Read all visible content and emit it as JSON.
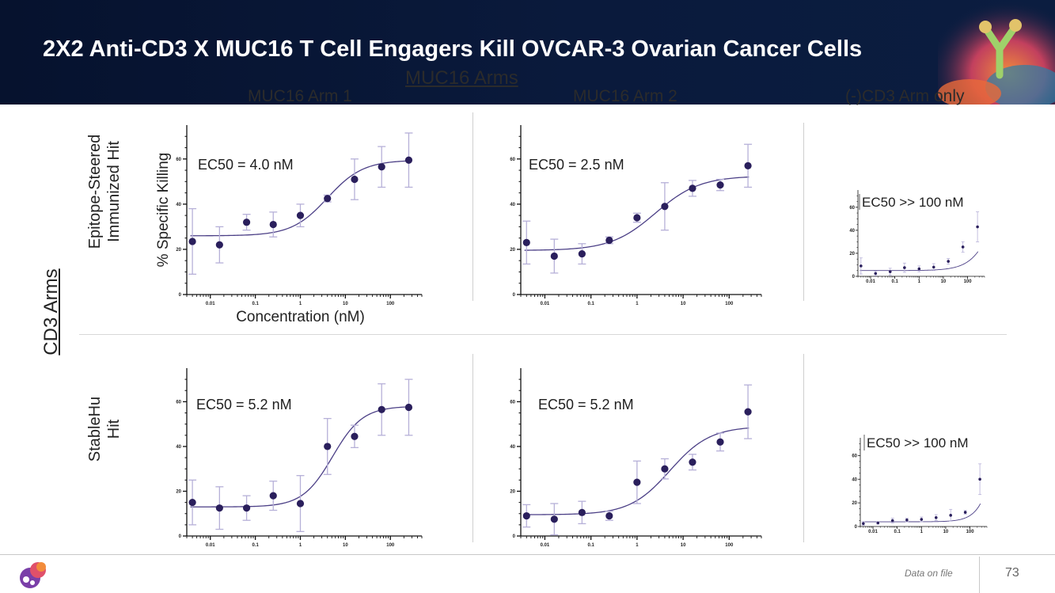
{
  "header": {
    "title": "2X2 Anti-CD3 X MUC16 T Cell Engagers Kill OVCAR-3 Ovarian Cancer Cells"
  },
  "columns": {
    "group_label": "MUC16 Arms",
    "col1": "MUC16 Arm 1",
    "col2": "MUC16 Arm 2",
    "col3": "(-)CD3 Arm only"
  },
  "rows": {
    "group_label": "CD3 Arms",
    "row1_line1": "Epitope-Steered",
    "row1_line2": "Immunized  Hit",
    "row2_line1": "StableHu",
    "row2_line2": "Hit"
  },
  "footer": {
    "note": "Data on file",
    "page_number": "73"
  },
  "colors": {
    "header_bg": "#0a1a3c",
    "point": "#2a1f5c",
    "curve": "#4b3f86",
    "error_bar": "#b6b0d8"
  },
  "chart_data": [
    {
      "type": "scatter",
      "id": "r1c1",
      "x_scale": "log",
      "xlim": [
        0.003,
        500
      ],
      "ylim": [
        0,
        75
      ],
      "x_ticks": [
        0.01,
        0.1,
        1,
        10,
        100
      ],
      "x_tick_labels": [
        "0.01",
        "0.1",
        "1",
        "10",
        "100"
      ],
      "y_ticks": [
        0,
        20,
        40,
        60
      ],
      "y_tick_labels": [
        "0",
        "20",
        "40",
        "60"
      ],
      "xlabel": "Concentration (nM)",
      "ylabel": "% Specific Killing",
      "annotation": "EC50 = 4.0 nM",
      "x": [
        0.004,
        0.016,
        0.064,
        0.25,
        1,
        4,
        16,
        64,
        256
      ],
      "y": [
        23.5,
        22,
        32,
        31,
        35,
        42.5,
        51,
        56.5,
        59.5
      ],
      "err": [
        14.5,
        8,
        3.5,
        5.5,
        5,
        1.5,
        9,
        9,
        12
      ],
      "fit": {
        "bottom": 26,
        "top": 59.5,
        "ec50": 4.0,
        "hill": 1.1
      }
    },
    {
      "type": "scatter",
      "id": "r1c2",
      "x_scale": "log",
      "xlim": [
        0.003,
        500
      ],
      "ylim": [
        0,
        75
      ],
      "x_ticks": [
        0.01,
        0.1,
        1,
        10,
        100
      ],
      "x_tick_labels": [
        "0.01",
        "0.1",
        "1",
        "10",
        "100"
      ],
      "y_ticks": [
        0,
        20,
        40,
        60
      ],
      "y_tick_labels": [
        "0",
        "20",
        "40",
        "60"
      ],
      "annotation": "EC50 = 2.5 nM",
      "x": [
        0.004,
        0.016,
        0.064,
        0.25,
        1,
        4,
        16,
        64,
        256
      ],
      "y": [
        23,
        17,
        18,
        24,
        34,
        39,
        47,
        48.5,
        57
      ],
      "err": [
        9.5,
        7.5,
        4.5,
        1.5,
        2,
        10.5,
        3.5,
        2.5,
        9.5
      ],
      "fit": {
        "bottom": 19.5,
        "top": 52.5,
        "ec50": 2.5,
        "hill": 0.9
      }
    },
    {
      "type": "scatter",
      "id": "r1c3",
      "x_scale": "log",
      "xlim": [
        0.003,
        500
      ],
      "ylim": [
        0,
        75
      ],
      "x_ticks": [
        0.01,
        0.1,
        1,
        10,
        100
      ],
      "x_tick_labels": [
        "0.01",
        "0.1",
        "1",
        "10",
        "100"
      ],
      "y_ticks": [
        0,
        20,
        40,
        60
      ],
      "y_tick_labels": [
        "0",
        "20",
        "40",
        "60"
      ],
      "annotation": "EC50 >> 100 nM",
      "x": [
        0.004,
        0.016,
        0.064,
        0.25,
        1,
        4,
        16,
        64,
        256
      ],
      "y": [
        9,
        2.5,
        4,
        7.5,
        6.5,
        8,
        13,
        25.5,
        43
      ],
      "err": [
        7,
        2,
        3,
        4,
        2.5,
        3,
        2.5,
        4.5,
        13
      ],
      "fit": {
        "bottom": 5,
        "top": 150,
        "ec50": 3000,
        "hill": 0.85
      }
    },
    {
      "type": "scatter",
      "id": "r2c1",
      "x_scale": "log",
      "xlim": [
        0.003,
        500
      ],
      "ylim": [
        0,
        75
      ],
      "x_ticks": [
        0.01,
        0.1,
        1,
        10,
        100
      ],
      "x_tick_labels": [
        "0.01",
        "0.1",
        "1",
        "10",
        "100"
      ],
      "y_ticks": [
        0,
        20,
        40,
        60
      ],
      "y_tick_labels": [
        "0",
        "20",
        "40",
        "60"
      ],
      "annotation": "EC50 = 5.2 nM",
      "x": [
        0.004,
        0.016,
        0.064,
        0.25,
        1,
        4,
        16,
        64,
        256
      ],
      "y": [
        15,
        12.5,
        12.5,
        18,
        14.5,
        40,
        44.5,
        56.5,
        57.5
      ],
      "err": [
        10,
        9.5,
        5.5,
        6.5,
        12.5,
        12.5,
        5,
        11.5,
        12.5
      ],
      "fit": {
        "bottom": 13,
        "top": 58,
        "ec50": 5.2,
        "hill": 1.3
      }
    },
    {
      "type": "scatter",
      "id": "r2c2",
      "x_scale": "log",
      "xlim": [
        0.003,
        500
      ],
      "ylim": [
        0,
        75
      ],
      "x_ticks": [
        0.01,
        0.1,
        1,
        10,
        100
      ],
      "x_tick_labels": [
        "0.01",
        "0.1",
        "1",
        "10",
        "100"
      ],
      "y_ticks": [
        0,
        20,
        40,
        60
      ],
      "y_tick_labels": [
        "0",
        "20",
        "40",
        "60"
      ],
      "annotation": "EC50 = 5.2 nM",
      "x": [
        0.004,
        0.016,
        0.064,
        0.25,
        1,
        4,
        16,
        64,
        256
      ],
      "y": [
        9,
        7.5,
        10.5,
        9,
        24,
        30,
        33,
        42,
        55.5
      ],
      "err": [
        5,
        7,
        5,
        2,
        9.5,
        4.5,
        3.5,
        4,
        12
      ],
      "fit": {
        "bottom": 9.5,
        "top": 49,
        "ec50": 5.2,
        "hill": 1.0
      }
    },
    {
      "type": "scatter",
      "id": "r2c3",
      "x_scale": "log",
      "xlim": [
        0.003,
        500
      ],
      "ylim": [
        0,
        75
      ],
      "x_ticks": [
        0.01,
        0.1,
        1,
        10,
        100
      ],
      "x_tick_labels": [
        "0.01",
        "0.1",
        "1",
        "10",
        "100"
      ],
      "y_ticks": [
        0,
        20,
        40,
        60
      ],
      "y_tick_labels": [
        "0",
        "20",
        "40",
        "60"
      ],
      "annotation": "EC50 >> 100 nM",
      "x": [
        0.004,
        0.016,
        0.064,
        0.25,
        1,
        4,
        16,
        64,
        256
      ],
      "y": [
        2.5,
        3,
        5,
        5.5,
        6,
        7.5,
        9.5,
        12,
        40
      ],
      "err": [
        1.5,
        1,
        2,
        1.5,
        2,
        2.5,
        5,
        1.5,
        13
      ],
      "fit": {
        "bottom": 4,
        "top": 400,
        "ec50": 5000,
        "hill": 1.1
      }
    }
  ]
}
